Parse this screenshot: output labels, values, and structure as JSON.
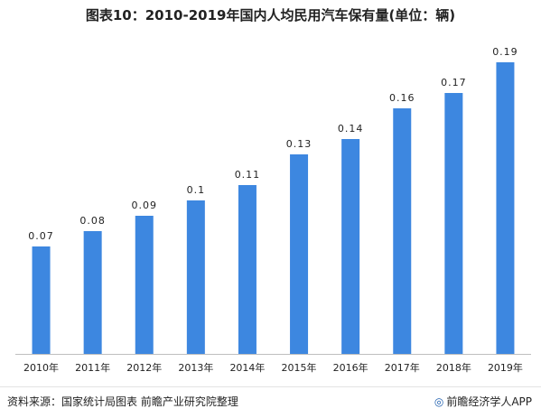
{
  "title": "图表10：2010-2019年国内人均民用汽车保有量(单位：辆)",
  "source": "资料来源：国家统计局图表 前瞻产业研究院整理",
  "brand": {
    "icon": "qianzhan-logo-icon",
    "text": "前瞻经济学人APP"
  },
  "colors": {
    "bar": "#3d87e0",
    "axis": "#bfbfbf",
    "text": "#222222"
  },
  "chart_data": {
    "type": "bar",
    "title": "图表10：2010-2019年国内人均民用汽车保有量(单位：辆)",
    "xlabel": "",
    "ylabel": "",
    "ylim": [
      0,
      0.2
    ],
    "grid": false,
    "legend": "none",
    "categories": [
      "2010年",
      "2011年",
      "2012年",
      "2013年",
      "2014年",
      "2015年",
      "2016年",
      "2017年",
      "2018年",
      "2019年"
    ],
    "values": [
      0.07,
      0.08,
      0.09,
      0.1,
      0.11,
      0.13,
      0.14,
      0.16,
      0.17,
      0.19
    ],
    "value_labels": [
      "0.07",
      "0.08",
      "0.09",
      "0.1",
      "0.11",
      "0.13",
      "0.14",
      "0.16",
      "0.17",
      "0.19"
    ]
  }
}
